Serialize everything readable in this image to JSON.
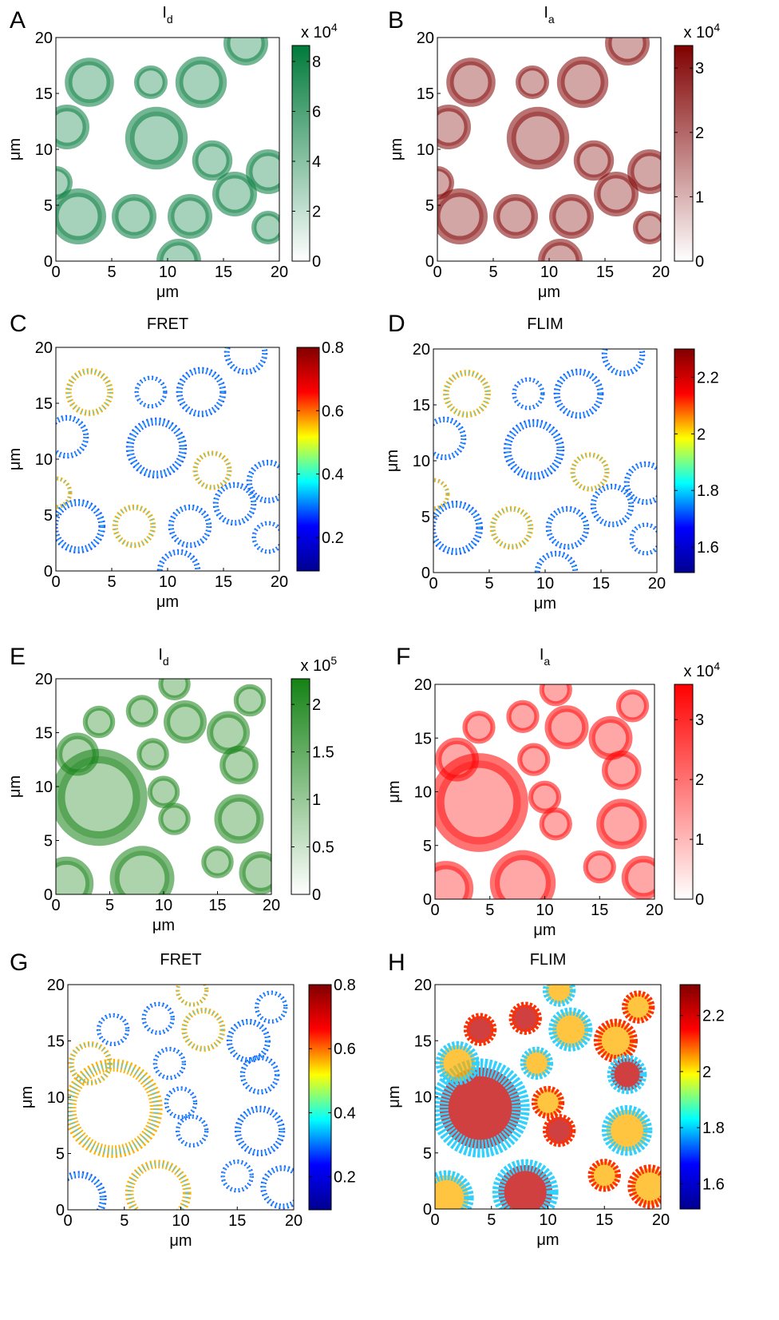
{
  "chart_data": [
    {
      "type": "image",
      "panel": "A",
      "title": "I",
      "title_sub": "d",
      "xlabel": "μm",
      "ylabel": "μm",
      "xlim": [
        0,
        20
      ],
      "ylim": [
        0,
        20
      ],
      "xticks": [
        0,
        5,
        10,
        15,
        20
      ],
      "yticks": [
        0,
        5,
        10,
        15,
        20
      ],
      "colorbar": {
        "lim": [
          0,
          8.64
        ],
        "ticks": [
          0,
          2,
          4,
          6,
          8
        ],
        "multiplier": "x 10",
        "exponent": "4",
        "colormap": [
          "#ffffff",
          "#007a3a"
        ]
      }
    },
    {
      "type": "image",
      "panel": "B",
      "title": "I",
      "title_sub": "a",
      "xlabel": "μm",
      "ylabel": "μm",
      "xlim": [
        0,
        20
      ],
      "ylim": [
        0,
        20
      ],
      "xticks": [
        0,
        5,
        10,
        15,
        20
      ],
      "yticks": [
        0,
        5,
        10,
        15,
        20
      ],
      "colorbar": {
        "lim": [
          0,
          3.35
        ],
        "ticks": [
          0,
          1,
          2,
          3
        ],
        "multiplier": "x 10",
        "exponent": "4",
        "colormap": [
          "#ffffff",
          "#800000"
        ]
      }
    },
    {
      "type": "image",
      "panel": "C",
      "title": "FRET",
      "xlabel": "μm",
      "ylabel": "μm",
      "xlim": [
        0,
        20
      ],
      "ylim": [
        0,
        20
      ],
      "xticks": [
        0,
        5,
        10,
        15,
        20
      ],
      "yticks": [
        0,
        5,
        10,
        15,
        20
      ],
      "colorbar": {
        "lim": [
          0.094,
          0.8
        ],
        "ticks": [
          0.2,
          0.4,
          0.6,
          0.8
        ],
        "colormap": [
          "#00008f",
          "#0000ff",
          "#00ffff",
          "#ffff00",
          "#ff0000",
          "#800000"
        ]
      }
    },
    {
      "type": "image",
      "panel": "D",
      "title": "FLIM",
      "xlabel": "μm",
      "ylabel": "μm",
      "xlim": [
        0,
        20
      ],
      "ylim": [
        0,
        20
      ],
      "xticks": [
        0,
        5,
        10,
        15,
        20
      ],
      "yticks": [
        0,
        5,
        10,
        15,
        20
      ],
      "colorbar": {
        "lim": [
          1.51,
          2.3
        ],
        "ticks": [
          1.6,
          1.8,
          2,
          2.2
        ],
        "colormap": [
          "#00008f",
          "#0000ff",
          "#00ffff",
          "#ffff00",
          "#ff0000",
          "#800000"
        ]
      }
    },
    {
      "type": "image",
      "panel": "E",
      "title": "I",
      "title_sub": "d",
      "xlabel": "μm",
      "ylabel": "μm",
      "xlim": [
        0,
        20
      ],
      "ylim": [
        0,
        20
      ],
      "xticks": [
        0,
        5,
        10,
        15,
        20
      ],
      "yticks": [
        0,
        5,
        10,
        15,
        20
      ],
      "colorbar": {
        "lim": [
          0,
          2.27
        ],
        "ticks": [
          0,
          0.5,
          1,
          1.5,
          2
        ],
        "multiplier": "x 10",
        "exponent": "5",
        "colormap": [
          "#ffffff",
          "#148214"
        ]
      }
    },
    {
      "type": "image",
      "panel": "F",
      "title": "I",
      "title_sub": "a",
      "xlabel": "μm",
      "ylabel": "μm",
      "xlim": [
        0,
        20
      ],
      "ylim": [
        0,
        20
      ],
      "xticks": [
        0,
        5,
        10,
        15,
        20
      ],
      "yticks": [
        0,
        5,
        10,
        15,
        20
      ],
      "colorbar": {
        "lim": [
          0,
          3.59
        ],
        "ticks": [
          0,
          1,
          2,
          3
        ],
        "multiplier": "x 10",
        "exponent": "4",
        "colormap": [
          "#ffffff",
          "#ff0000"
        ]
      }
    },
    {
      "type": "image",
      "panel": "G",
      "title": "FRET",
      "xlabel": "μm",
      "ylabel": "μm",
      "xlim": [
        0,
        20
      ],
      "ylim": [
        0,
        20
      ],
      "xticks": [
        0,
        5,
        10,
        15,
        20
      ],
      "yticks": [
        0,
        5,
        10,
        15,
        20
      ],
      "colorbar": {
        "lim": [
          0.097,
          0.8
        ],
        "ticks": [
          0.2,
          0.4,
          0.6,
          0.8
        ],
        "colormap": [
          "#00008f",
          "#0000ff",
          "#00ffff",
          "#ffff00",
          "#ff0000",
          "#800000"
        ]
      }
    },
    {
      "type": "image",
      "panel": "H",
      "title": "FLIM",
      "xlabel": "μm",
      "ylabel": "μm",
      "xlim": [
        0,
        20
      ],
      "ylim": [
        0,
        20
      ],
      "xticks": [
        0,
        5,
        10,
        15,
        20
      ],
      "yticks": [
        0,
        5,
        10,
        15,
        20
      ],
      "colorbar": {
        "lim": [
          1.51,
          2.31
        ],
        "ticks": [
          1.6,
          1.8,
          2,
          2.2
        ],
        "colormap": [
          "#00008f",
          "#0000ff",
          "#00ffff",
          "#ffff00",
          "#ff0000",
          "#800000"
        ]
      }
    }
  ]
}
